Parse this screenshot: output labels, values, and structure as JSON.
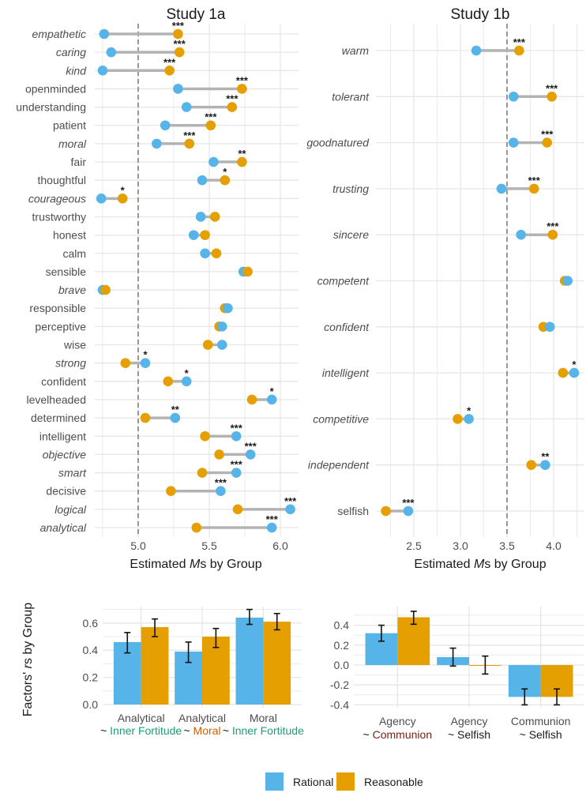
{
  "colors": {
    "rational": "#56B4E9",
    "reasonable": "#E69F00",
    "moral": "#D55E00",
    "inner_fortitude": "#1B9E77",
    "analytical": "#CC6FA8",
    "communion": "#7B1E10",
    "agency": "#9C9C2A",
    "neutral": "#4d4d4d"
  },
  "legend": {
    "items": [
      {
        "label": "Rational",
        "key": "rational"
      },
      {
        "label": "Reasonable",
        "key": "reasonable"
      }
    ]
  },
  "chart_data": [
    {
      "type": "dumbbell",
      "title": "Study 1a",
      "xlabel_pre": "Estimated ",
      "xlabel_italic": "M",
      "xlabel_post": "s by Group",
      "xlim": [
        4.7,
        6.1
      ],
      "xticks": [
        5.0,
        5.5,
        6.0
      ],
      "tick_labels": [
        "5.0",
        "5.5",
        "6.0"
      ],
      "reference_line": 5.0,
      "series_names": [
        "Rational",
        "Reasonable"
      ],
      "rows": [
        {
          "label": "empathetic",
          "group": "moral",
          "rational": 4.76,
          "reasonable": 5.28,
          "sig": "***"
        },
        {
          "label": "caring",
          "group": "moral",
          "rational": 4.81,
          "reasonable": 5.29,
          "sig": "***"
        },
        {
          "label": "kind",
          "group": "moral",
          "rational": 4.75,
          "reasonable": 5.22,
          "sig": "***"
        },
        {
          "label": "openminded",
          "group": "neutral",
          "rational": 5.28,
          "reasonable": 5.73,
          "sig": "***"
        },
        {
          "label": "understanding",
          "group": "neutral",
          "rational": 5.34,
          "reasonable": 5.66,
          "sig": "***"
        },
        {
          "label": "patient",
          "group": "neutral",
          "rational": 5.19,
          "reasonable": 5.51,
          "sig": "***"
        },
        {
          "label": "moral",
          "group": "moral",
          "rational": 5.13,
          "reasonable": 5.36,
          "sig": "***"
        },
        {
          "label": "fair",
          "group": "neutral",
          "rational": 5.53,
          "reasonable": 5.73,
          "sig": "**"
        },
        {
          "label": "thoughtful",
          "group": "neutral",
          "rational": 5.45,
          "reasonable": 5.61,
          "sig": "*"
        },
        {
          "label": "courageous",
          "group": "inner_fortitude",
          "rational": 4.74,
          "reasonable": 4.89,
          "sig": "*"
        },
        {
          "label": "trustworthy",
          "group": "neutral",
          "rational": 5.44,
          "reasonable": 5.54,
          "sig": ""
        },
        {
          "label": "honest",
          "group": "neutral",
          "rational": 5.39,
          "reasonable": 5.47,
          "sig": ""
        },
        {
          "label": "calm",
          "group": "neutral",
          "rational": 5.47,
          "reasonable": 5.55,
          "sig": ""
        },
        {
          "label": "sensible",
          "group": "neutral",
          "rational": 5.74,
          "reasonable": 5.77,
          "sig": ""
        },
        {
          "label": "brave",
          "group": "inner_fortitude",
          "rational": 4.75,
          "reasonable": 4.77,
          "sig": ""
        },
        {
          "label": "responsible",
          "group": "neutral",
          "rational": 5.63,
          "reasonable": 5.61,
          "sig": ""
        },
        {
          "label": "perceptive",
          "group": "neutral",
          "rational": 5.59,
          "reasonable": 5.57,
          "sig": ""
        },
        {
          "label": "wise",
          "group": "neutral",
          "rational": 5.59,
          "reasonable": 5.49,
          "sig": ""
        },
        {
          "label": "strong",
          "group": "inner_fortitude",
          "rational": 5.05,
          "reasonable": 4.91,
          "sig": "*"
        },
        {
          "label": "confident",
          "group": "neutral",
          "rational": 5.34,
          "reasonable": 5.21,
          "sig": "*"
        },
        {
          "label": "levelheaded",
          "group": "neutral",
          "rational": 5.94,
          "reasonable": 5.8,
          "sig": "*"
        },
        {
          "label": "determined",
          "group": "neutral",
          "rational": 5.26,
          "reasonable": 5.05,
          "sig": "**"
        },
        {
          "label": "intelligent",
          "group": "neutral",
          "rational": 5.69,
          "reasonable": 5.47,
          "sig": "***"
        },
        {
          "label": "objective",
          "group": "analytical",
          "rational": 5.79,
          "reasonable": 5.57,
          "sig": "***"
        },
        {
          "label": "smart",
          "group": "analytical",
          "rational": 5.69,
          "reasonable": 5.45,
          "sig": "***"
        },
        {
          "label": "decisive",
          "group": "neutral",
          "rational": 5.58,
          "reasonable": 5.23,
          "sig": "***"
        },
        {
          "label": "logical",
          "group": "analytical",
          "rational": 6.07,
          "reasonable": 5.7,
          "sig": "***"
        },
        {
          "label": "analytical",
          "group": "analytical",
          "rational": 5.94,
          "reasonable": 5.41,
          "sig": "***"
        }
      ]
    },
    {
      "type": "dumbbell",
      "title": "Study 1b",
      "xlabel_pre": "Estimated ",
      "xlabel_italic": "M",
      "xlabel_post": "s by Group",
      "xlim": [
        2.15,
        4.3
      ],
      "xticks": [
        2.5,
        3.0,
        3.5,
        4.0
      ],
      "tick_labels": [
        "2.5",
        "3.0",
        "3.5",
        "4.0"
      ],
      "reference_line": 3.5,
      "series_names": [
        "Rational",
        "Reasonable"
      ],
      "rows": [
        {
          "label": "warm",
          "group": "communion",
          "rational": 3.17,
          "reasonable": 3.63,
          "sig": "***"
        },
        {
          "label": "tolerant",
          "group": "communion",
          "rational": 3.57,
          "reasonable": 3.98,
          "sig": "***"
        },
        {
          "label": "goodnatured",
          "group": "communion",
          "rational": 3.57,
          "reasonable": 3.93,
          "sig": "***"
        },
        {
          "label": "trusting",
          "group": "communion",
          "rational": 3.44,
          "reasonable": 3.79,
          "sig": "***"
        },
        {
          "label": "sincere",
          "group": "communion",
          "rational": 3.65,
          "reasonable": 3.99,
          "sig": "***"
        },
        {
          "label": "competent",
          "group": "agency",
          "rational": 4.15,
          "reasonable": 4.12,
          "sig": ""
        },
        {
          "label": "confident",
          "group": "agency",
          "rational": 3.96,
          "reasonable": 3.89,
          "sig": ""
        },
        {
          "label": "intelligent",
          "group": "agency",
          "rational": 4.22,
          "reasonable": 4.1,
          "sig": "*"
        },
        {
          "label": "competitive",
          "group": "agency",
          "rational": 3.09,
          "reasonable": 2.97,
          "sig": "*"
        },
        {
          "label": "independent",
          "group": "agency",
          "rational": 3.91,
          "reasonable": 3.76,
          "sig": "**"
        },
        {
          "label": "selfish",
          "group": "neutral",
          "rational": 2.44,
          "reasonable": 2.2,
          "sig": "***"
        }
      ]
    },
    {
      "type": "bar",
      "ylabel_pre": "Factors' ",
      "ylabel_italic": "r",
      "ylabel_post": "s by Group",
      "ylim": [
        0.0,
        0.7
      ],
      "yticks": [
        0.0,
        0.2,
        0.4,
        0.6
      ],
      "tick_labels": [
        "0.0",
        "0.2",
        "0.4",
        "0.6"
      ],
      "categories": [
        {
          "line1": "Analytical",
          "line1_group": "analytical",
          "line2": "Inner Fortitude",
          "line2_group": "inner_fortitude"
        },
        {
          "line1": "Analytical",
          "line1_group": "analytical",
          "line2": "Moral",
          "line2_group": "moral"
        },
        {
          "line1": "Moral",
          "line1_group": "moral",
          "line2": "Inner Fortitude",
          "line2_group": "inner_fortitude"
        }
      ],
      "series": [
        {
          "name": "Rational",
          "key": "rational",
          "values": [
            0.46,
            0.39,
            0.64
          ],
          "ci_low": [
            0.38,
            0.31,
            0.59
          ],
          "ci_high": [
            0.53,
            0.46,
            0.7
          ]
        },
        {
          "name": "Reasonable",
          "key": "reasonable",
          "values": [
            0.57,
            0.5,
            0.61
          ],
          "ci_low": [
            0.5,
            0.42,
            0.55
          ],
          "ci_high": [
            0.63,
            0.56,
            0.67
          ]
        }
      ]
    },
    {
      "type": "bar",
      "ylim": [
        -0.4,
        0.55
      ],
      "yticks": [
        -0.4,
        -0.2,
        0.0,
        0.2,
        0.4
      ],
      "tick_labels": [
        "-0.4",
        "-0.2",
        "0.0",
        "0.2",
        "0.4"
      ],
      "categories": [
        {
          "line1": "Agency",
          "line1_group": "agency",
          "line2": "Communion",
          "line2_group": "communion"
        },
        {
          "line1": "Agency",
          "line1_group": "agency",
          "line2": "Selfish",
          "line2_group": "black"
        },
        {
          "line1": "Communion",
          "line1_group": "communion",
          "line2": "Selfish",
          "line2_group": "black"
        }
      ],
      "series": [
        {
          "name": "Rational",
          "key": "rational",
          "values": [
            0.32,
            0.08,
            -0.32
          ],
          "ci_low": [
            0.24,
            -0.01,
            -0.4
          ],
          "ci_high": [
            0.4,
            0.17,
            -0.24
          ]
        },
        {
          "name": "Reasonable",
          "key": "reasonable",
          "values": [
            0.48,
            -0.005,
            -0.32
          ],
          "ci_low": [
            0.41,
            -0.09,
            -0.4
          ],
          "ci_high": [
            0.54,
            0.09,
            -0.24
          ]
        }
      ]
    }
  ]
}
